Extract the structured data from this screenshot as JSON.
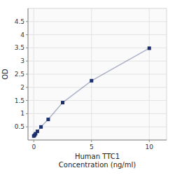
{
  "chart_data": {
    "type": "line",
    "xlabel": "Human TTC1\nConcentration (ng/ml)",
    "ylabel": "OD",
    "x": [
      0.0,
      0.078,
      0.156,
      0.313,
      0.625,
      1.25,
      2.5,
      5.0,
      10.0
    ],
    "values": [
      0.152,
      0.185,
      0.238,
      0.328,
      0.496,
      0.782,
      1.421,
      2.253,
      3.487
    ],
    "color": "#1a2f6e",
    "marker": "square",
    "xlim": [
      -0.5,
      11.5
    ],
    "ylim": [
      0,
      5.0
    ],
    "xticks": [
      0,
      5,
      10
    ],
    "yticks": [
      0.5,
      1,
      1.5,
      2,
      2.5,
      3,
      3.5,
      4,
      4.5
    ],
    "grid": true
  }
}
